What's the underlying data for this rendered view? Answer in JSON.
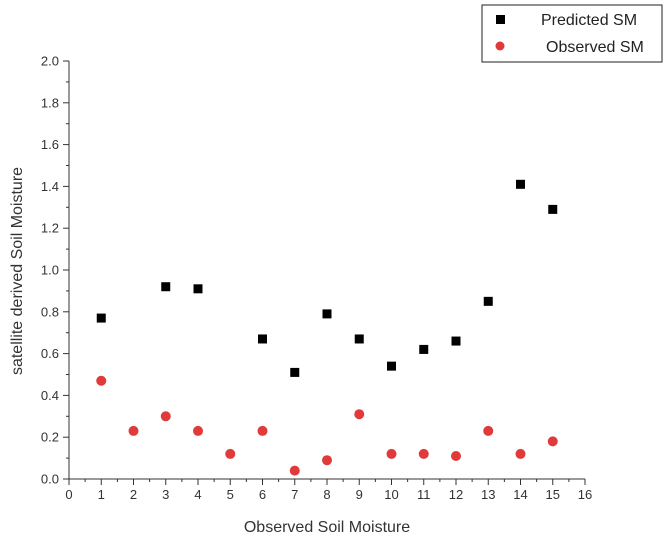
{
  "chart_data": {
    "type": "scatter",
    "xlabel": "Observed Soil Moisture",
    "ylabel": "satellite derived Soil Moisture",
    "xlim": [
      0,
      16
    ],
    "ylim": [
      0,
      2.0
    ],
    "x_ticks": [
      "0",
      "1",
      "2",
      "3",
      "4",
      "5",
      "6",
      "7",
      "8",
      "9",
      "10",
      "11",
      "12",
      "13",
      "14",
      "15",
      "16"
    ],
    "y_ticks": [
      "0.0",
      "0.2",
      "0.4",
      "0.6",
      "0.8",
      "1.0",
      "1.2",
      "1.4",
      "1.6",
      "1.8",
      "2.0"
    ],
    "grid": false,
    "legend_position": "top-right",
    "series": [
      {
        "name": "Predicted SM",
        "marker": "square",
        "color": "#000000",
        "x": [
          1,
          3,
          4,
          6,
          7,
          8,
          9,
          10,
          11,
          12,
          13,
          14,
          15
        ],
        "y": [
          0.77,
          0.92,
          0.91,
          0.67,
          0.51,
          0.79,
          0.67,
          0.54,
          0.62,
          0.66,
          0.85,
          1.41,
          1.29
        ]
      },
      {
        "name": "Observed SM",
        "marker": "circle",
        "color": "#e03a3a",
        "x": [
          1,
          2,
          3,
          4,
          5,
          6,
          7,
          8,
          9,
          10,
          11,
          12,
          13,
          14,
          15
        ],
        "y": [
          0.47,
          0.23,
          0.3,
          0.23,
          0.12,
          0.23,
          0.04,
          0.09,
          0.31,
          0.12,
          0.12,
          0.11,
          0.23,
          0.12,
          0.18
        ]
      }
    ]
  }
}
